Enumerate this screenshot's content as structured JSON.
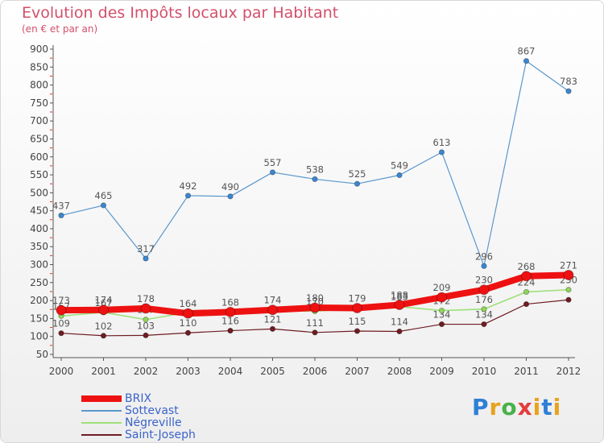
{
  "title": "Evolution des Impôts locaux par Habitant",
  "subtitle": "(en € et par an)",
  "logo": {
    "letters": [
      "P",
      "r",
      "o",
      "x",
      "i",
      "t",
      "i"
    ],
    "colors": [
      "#2f7fd6",
      "#e8a21e",
      "#47b14a",
      "#e23c3c",
      "#e8a21e",
      "#2f7fd6",
      "#e8a21e"
    ]
  },
  "chart_data": {
    "type": "line",
    "title": "Evolution des Impôts locaux par Habitant",
    "subtitle": "(en € et par an)",
    "categories": [
      "2000",
      "2001",
      "2002",
      "2003",
      "2004",
      "2005",
      "2006",
      "2007",
      "2008",
      "2009",
      "2010",
      "2011",
      "2012"
    ],
    "y_ticks": [
      50,
      100,
      150,
      200,
      250,
      300,
      350,
      400,
      450,
      500,
      550,
      600,
      650,
      700,
      750,
      800,
      850,
      900
    ],
    "ylim": [
      50,
      900
    ],
    "grid": false,
    "legend_position": "bottom-left",
    "series": [
      {
        "name": "Saint-Joseph",
        "color": "#6e1c22",
        "line_width": 1.2,
        "marker_color": "#6e1c22",
        "values": [
          109,
          102,
          103,
          110,
          116,
          121,
          111,
          115,
          114,
          134,
          134,
          190,
          202
        ],
        "labels": [
          "109",
          "102",
          "103",
          "110",
          "116",
          "121",
          "111",
          "115",
          "114",
          "134",
          "134",
          "",
          ""
        ]
      },
      {
        "name": "Négreville",
        "color": "#9ee07a",
        "line_width": 1.6,
        "marker_color": "#8fd45c",
        "values": [
          157,
          167,
          147,
          167,
          163,
          173,
          170,
          178,
          183,
          172,
          176,
          224,
          230
        ],
        "labels": [
          "157",
          "167",
          "147",
          "",
          "",
          "",
          "170",
          "",
          "183",
          "172",
          "176",
          "224",
          "230"
        ]
      },
      {
        "name": "Sottevast",
        "color": "#5a97cc",
        "line_width": 1.2,
        "marker_color": "#3c86cf",
        "values": [
          437,
          465,
          317,
          492,
          490,
          557,
          538,
          525,
          549,
          613,
          296,
          867,
          783
        ],
        "labels": [
          "437",
          "465",
          "317",
          "492",
          "490",
          "557",
          "538",
          "525",
          "549",
          "613",
          "296",
          "867",
          "783"
        ]
      },
      {
        "name": "BRIX",
        "color": "#ee1111",
        "line_width": 8,
        "marker_color": "#ee1111",
        "values": [
          173,
          174,
          178,
          164,
          168,
          174,
          180,
          179,
          188,
          209,
          230,
          268,
          271
        ],
        "labels": [
          "173",
          "174",
          "178",
          "164",
          "168",
          "174",
          "180",
          "179",
          "188",
          "209",
          "230",
          "268",
          "271"
        ]
      }
    ],
    "legend": [
      "BRIX",
      "Sottevast",
      "Négreville",
      "Saint-Joseph"
    ]
  }
}
